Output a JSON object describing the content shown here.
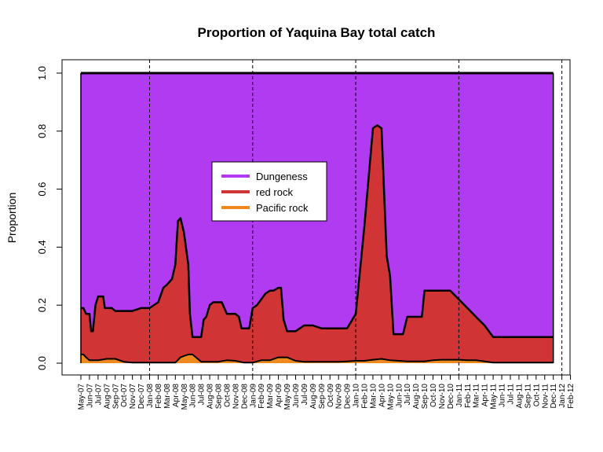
{
  "chart_data": {
    "type": "area",
    "title": "Proportion of Yaquina Bay total catch",
    "xlabel": "",
    "ylabel": "Proportion",
    "ylim": [
      0.0,
      1.0
    ],
    "yticks": [
      "0.0",
      "0.2",
      "0.4",
      "0.6",
      "0.8",
      "1.0"
    ],
    "x_ticks": [
      "May-07",
      "Jun-07",
      "Jul-07",
      "Aug-07",
      "Sep-07",
      "Oct-07",
      "Nov-07",
      "Dec-07",
      "Jan-08",
      "Feb-08",
      "Mar-08",
      "Apr-08",
      "May-08",
      "Jun-08",
      "Jul-08",
      "Aug-08",
      "Sep-08",
      "Oct-08",
      "Nov-08",
      "Dec-08",
      "Jan-09",
      "Feb-09",
      "Mar-09",
      "Apr-09",
      "May-09",
      "Jun-09",
      "Jul-09",
      "Aug-09",
      "Sep-09",
      "Oct-09",
      "Nov-09",
      "Dec-09",
      "Jan-10",
      "Feb-10",
      "Mar-10",
      "Apr-10",
      "May-10",
      "Jun-10",
      "Jul-10",
      "Aug-10",
      "Sep-10",
      "Oct-10",
      "Nov-10",
      "Dec-10",
      "Jan-11",
      "Feb-11",
      "Mar-11",
      "Apr-11",
      "May-11",
      "Jun-11",
      "Jul-11",
      "Aug-11",
      "Sep-11",
      "Oct-11",
      "Nov-11",
      "Dec-11",
      "Jan-12",
      "Feb-12"
    ],
    "year_boundaries": [
      "Jan-08",
      "Jan-09",
      "Jan-10",
      "Jan-11",
      "Jan-12"
    ],
    "legend_position": "center-left",
    "grid": false,
    "series": [
      {
        "name": "Dungeness",
        "color": "#B13BF0",
        "values": [
          1.0,
          1.0
        ]
      },
      {
        "name": "red rock",
        "color": "#D13434",
        "points": [
          [
            0,
            0.19
          ],
          [
            0.3,
            0.19
          ],
          [
            0.6,
            0.17
          ],
          [
            1,
            0.17
          ],
          [
            1.2,
            0.11
          ],
          [
            1.4,
            0.11
          ],
          [
            1.7,
            0.2
          ],
          [
            2,
            0.23
          ],
          [
            2.3,
            0.23
          ],
          [
            2.6,
            0.23
          ],
          [
            2.8,
            0.19
          ],
          [
            3.2,
            0.19
          ],
          [
            3.6,
            0.19
          ],
          [
            4,
            0.18
          ],
          [
            5,
            0.18
          ],
          [
            6,
            0.18
          ],
          [
            7,
            0.19
          ],
          [
            8,
            0.19
          ],
          [
            9,
            0.21
          ],
          [
            9.6,
            0.26
          ],
          [
            10,
            0.27
          ],
          [
            10.6,
            0.29
          ],
          [
            11,
            0.34
          ],
          [
            11.3,
            0.49
          ],
          [
            11.6,
            0.5
          ],
          [
            12,
            0.45
          ],
          [
            12.5,
            0.34
          ],
          [
            12.7,
            0.17
          ],
          [
            13,
            0.09
          ],
          [
            14,
            0.09
          ],
          [
            14.3,
            0.15
          ],
          [
            14.6,
            0.16
          ],
          [
            15,
            0.2
          ],
          [
            15.4,
            0.21
          ],
          [
            16,
            0.21
          ],
          [
            16.4,
            0.21
          ],
          [
            17,
            0.17
          ],
          [
            18,
            0.17
          ],
          [
            18.4,
            0.16
          ],
          [
            18.7,
            0.12
          ],
          [
            19,
            0.12
          ],
          [
            19.6,
            0.12
          ],
          [
            20,
            0.19
          ],
          [
            20.5,
            0.2
          ],
          [
            21,
            0.22
          ],
          [
            21.5,
            0.24
          ],
          [
            22,
            0.25
          ],
          [
            22.4,
            0.25
          ],
          [
            23,
            0.26
          ],
          [
            23.3,
            0.26
          ],
          [
            23.6,
            0.15
          ],
          [
            24,
            0.11
          ],
          [
            25,
            0.11
          ],
          [
            26,
            0.13
          ],
          [
            27,
            0.13
          ],
          [
            28,
            0.12
          ],
          [
            29,
            0.12
          ],
          [
            30,
            0.12
          ],
          [
            31,
            0.12
          ],
          [
            32,
            0.17
          ],
          [
            33,
            0.47
          ],
          [
            34,
            0.81
          ],
          [
            34.5,
            0.82
          ],
          [
            35,
            0.81
          ],
          [
            35.6,
            0.37
          ],
          [
            36,
            0.3
          ],
          [
            36.4,
            0.1
          ],
          [
            37,
            0.1
          ],
          [
            37.5,
            0.1
          ],
          [
            38,
            0.16
          ],
          [
            39,
            0.16
          ],
          [
            39.7,
            0.16
          ],
          [
            40,
            0.25
          ],
          [
            41,
            0.25
          ],
          [
            42,
            0.25
          ],
          [
            43,
            0.25
          ],
          [
            44,
            0.22
          ],
          [
            45,
            0.19
          ],
          [
            46,
            0.16
          ],
          [
            47,
            0.13
          ],
          [
            48,
            0.09
          ],
          [
            55,
            0.09
          ]
        ]
      },
      {
        "name": "Pacific rock",
        "color": "#EE8A1D",
        "points": [
          [
            0,
            0.03
          ],
          [
            0.3,
            0.03
          ],
          [
            0.6,
            0.02
          ],
          [
            1,
            0.01
          ],
          [
            1.2,
            0.01
          ],
          [
            2,
            0.01
          ],
          [
            3,
            0.015
          ],
          [
            4,
            0.015
          ],
          [
            5,
            0.005
          ],
          [
            6,
            0.002
          ],
          [
            7,
            0.002
          ],
          [
            8,
            0.002
          ],
          [
            9,
            0.002
          ],
          [
            10,
            0.002
          ],
          [
            11,
            0.002
          ],
          [
            11.6,
            0.02
          ],
          [
            12,
            0.025
          ],
          [
            12.5,
            0.03
          ],
          [
            13,
            0.03
          ],
          [
            14,
            0.005
          ],
          [
            15,
            0.005
          ],
          [
            16,
            0.005
          ],
          [
            17,
            0.01
          ],
          [
            18,
            0.008
          ],
          [
            19,
            0.002
          ],
          [
            20,
            0.002
          ],
          [
            21,
            0.01
          ],
          [
            22,
            0.01
          ],
          [
            23,
            0.02
          ],
          [
            24,
            0.02
          ],
          [
            25,
            0.008
          ],
          [
            26,
            0.005
          ],
          [
            27,
            0.005
          ],
          [
            28,
            0.005
          ],
          [
            29,
            0.005
          ],
          [
            30,
            0.005
          ],
          [
            31,
            0.006
          ],
          [
            32,
            0.008
          ],
          [
            33,
            0.008
          ],
          [
            34,
            0.012
          ],
          [
            35,
            0.015
          ],
          [
            36,
            0.01
          ],
          [
            37,
            0.008
          ],
          [
            38,
            0.006
          ],
          [
            39,
            0.006
          ],
          [
            40,
            0.006
          ],
          [
            41,
            0.01
          ],
          [
            42,
            0.012
          ],
          [
            43,
            0.012
          ],
          [
            44,
            0.012
          ],
          [
            45,
            0.01
          ],
          [
            46,
            0.01
          ],
          [
            47,
            0.006
          ],
          [
            48,
            0.002
          ],
          [
            55,
            0.002
          ]
        ]
      }
    ]
  }
}
